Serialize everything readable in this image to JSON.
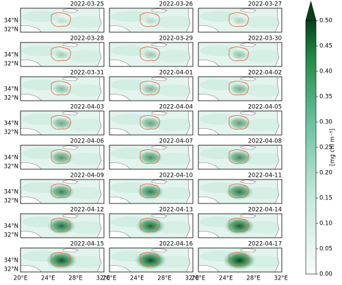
{
  "panels": [
    {
      "date": "2022-03-25"
    },
    {
      "date": "2022-03-26"
    },
    {
      "date": "2022-03-27"
    },
    {
      "date": "2022-03-28"
    },
    {
      "date": "2022-03-29"
    },
    {
      "date": "2022-03-30"
    },
    {
      "date": "2022-03-31"
    },
    {
      "date": "2022-04-01"
    },
    {
      "date": "2022-04-02"
    },
    {
      "date": "2022-04-03"
    },
    {
      "date": "2022-04-04"
    },
    {
      "date": "2022-04-05"
    },
    {
      "date": "2022-04-06"
    },
    {
      "date": "2022-04-07"
    },
    {
      "date": "2022-04-08"
    },
    {
      "date": "2022-04-09"
    },
    {
      "date": "2022-04-10"
    },
    {
      "date": "2022-04-11"
    },
    {
      "date": "2022-04-12"
    },
    {
      "date": "2022-04-13"
    },
    {
      "date": "2022-04-14"
    },
    {
      "date": "2022-04-15"
    },
    {
      "date": "2022-04-16"
    },
    {
      "date": "2022-04-17"
    }
  ],
  "lat_labels": [
    "34°N",
    "32°N"
  ],
  "lon_labels": [
    "20°E",
    "24°E",
    "28°E",
    "32°E"
  ],
  "colorbar": {
    "label": "[mg chl m⁻³]",
    "range": [
      0,
      0.5
    ],
    "ticks": [
      {
        "value": 0,
        "label": "0.00"
      },
      0.05,
      {
        "value": 0.1,
        "label": "0.10"
      },
      0.15,
      {
        "value": 0.2,
        "label": "0.20"
      },
      0.25,
      {
        "value": 0.3,
        "label": "0.30"
      },
      0.35,
      {
        "value": 0.4,
        "label": "0.40"
      },
      0.45,
      {
        "value": 0.5,
        "label": "0.50"
      }
    ]
  }
}
